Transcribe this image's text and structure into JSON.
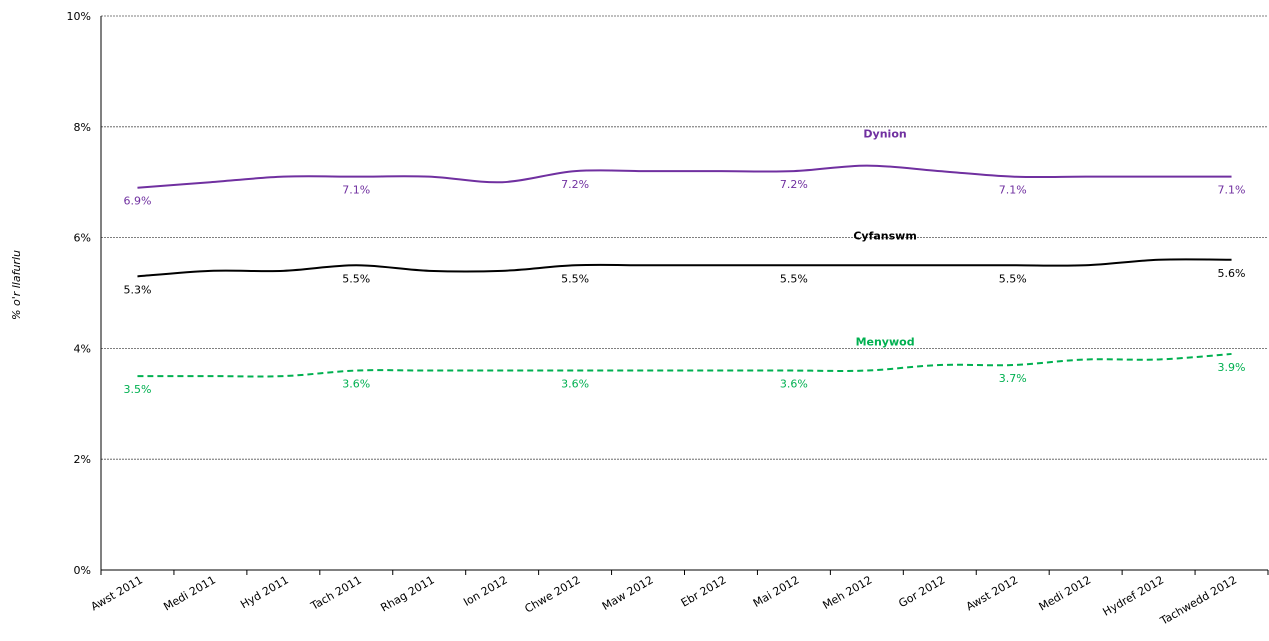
{
  "chart_data": {
    "type": "line",
    "title": "",
    "xlabel": "",
    "ylabel": "% o'r llafurlu",
    "ylim": [
      0,
      10
    ],
    "yticks": [
      "0%",
      "2%",
      "4%",
      "6%",
      "8%",
      "10%"
    ],
    "ytick_values": [
      0,
      2,
      4,
      6,
      8,
      10
    ],
    "grid": true,
    "categories": [
      "Awst 2011",
      "Medi 2011",
      "Hyd 2011",
      "Tach 2011",
      "Rhag 2011",
      "Ion 2012",
      "Chwe 2012",
      "Maw 2012",
      "Ebr 2012",
      "Mai 2012",
      "Meh 2012",
      "Gor 2012",
      "Awst 2012",
      "Medi 2012",
      "Hydref 2012",
      "Tachwedd 2012"
    ],
    "series": [
      {
        "name": "Dynion",
        "color": "#7030a0",
        "style": "solid",
        "values": [
          6.9,
          7.0,
          7.1,
          7.1,
          7.1,
          7.0,
          7.2,
          7.2,
          7.2,
          7.2,
          7.3,
          7.2,
          7.1,
          7.1,
          7.1,
          7.1
        ],
        "label_indices": [
          0,
          3,
          6,
          9,
          12,
          15
        ],
        "labels": [
          "6.9%",
          "7.1%",
          "7.2%",
          "7.2%",
          "7.1%",
          "7.1%"
        ]
      },
      {
        "name": "Cyfanswm",
        "color": "#000000",
        "style": "solid",
        "values": [
          5.3,
          5.4,
          5.4,
          5.5,
          5.4,
          5.4,
          5.5,
          5.5,
          5.5,
          5.5,
          5.5,
          5.5,
          5.5,
          5.5,
          5.6,
          5.6
        ],
        "label_indices": [
          0,
          3,
          6,
          9,
          12,
          15
        ],
        "labels": [
          "5.3%",
          "5.5%",
          "5.5%",
          "5.5%",
          "5.5%",
          "5.6%"
        ]
      },
      {
        "name": "Menywod",
        "color": "#00b050",
        "style": "dashed",
        "values": [
          3.5,
          3.5,
          3.5,
          3.6,
          3.6,
          3.6,
          3.6,
          3.6,
          3.6,
          3.6,
          3.6,
          3.7,
          3.7,
          3.8,
          3.8,
          3.9
        ],
        "label_indices": [
          0,
          3,
          6,
          9,
          12,
          15
        ],
        "labels": [
          "3.5%",
          "3.6%",
          "3.6%",
          "3.6%",
          "3.7%",
          "3.9%"
        ]
      }
    ]
  }
}
